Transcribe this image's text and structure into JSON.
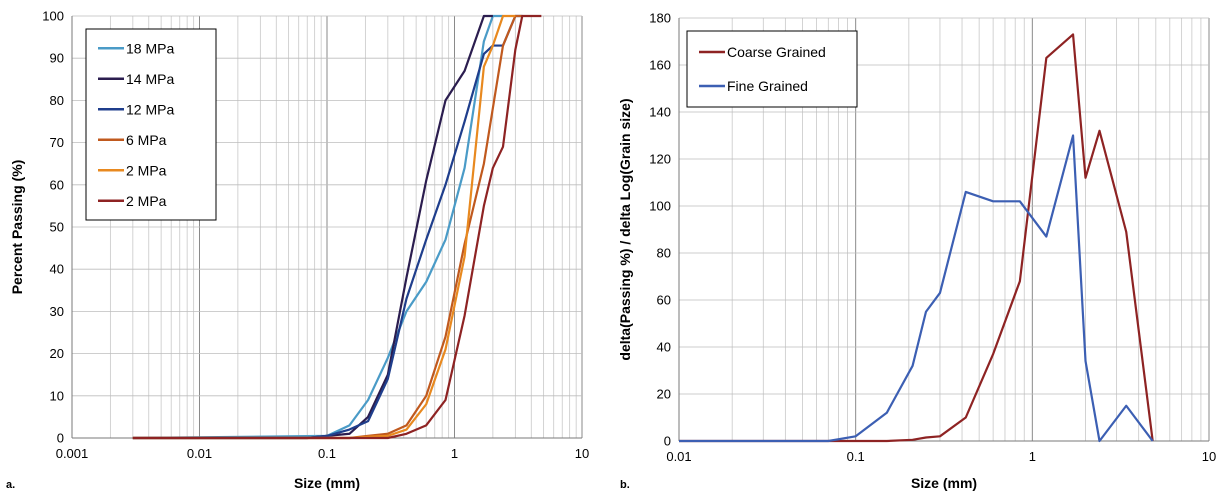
{
  "chart_data": [
    {
      "panel_label": "a.",
      "type": "line",
      "xlabel": "Size (mm)",
      "ylabel": "Percent Passing (%)",
      "xscale": "log",
      "xlim": [
        0.001,
        10
      ],
      "ylim": [
        0,
        100
      ],
      "x_ticks": [
        "0.001",
        "0.01",
        "0.1",
        "1",
        "10"
      ],
      "y_ticks": [
        "0",
        "10",
        "20",
        "30",
        "40",
        "50",
        "60",
        "70",
        "80",
        "90",
        "100"
      ],
      "grid": true,
      "legend_position": "top-left",
      "series": [
        {
          "name": "18 MPa",
          "color": "#4a9bc7",
          "points": [
            [
              0.003,
              0
            ],
            [
              0.1,
              0.5
            ],
            [
              0.15,
              3
            ],
            [
              0.21,
              9
            ],
            [
              0.3,
              19
            ],
            [
              0.42,
              30
            ],
            [
              0.6,
              37
            ],
            [
              0.85,
              47
            ],
            [
              1.2,
              64
            ],
            [
              1.7,
              94
            ],
            [
              2.0,
              100
            ],
            [
              2.4,
              100
            ]
          ]
        },
        {
          "name": "14 MPa",
          "color": "#2b1d4f",
          "points": [
            [
              0.003,
              0
            ],
            [
              0.07,
              0
            ],
            [
              0.1,
              0.5
            ],
            [
              0.15,
              1
            ],
            [
              0.21,
              5
            ],
            [
              0.3,
              15
            ],
            [
              0.42,
              38
            ],
            [
              0.6,
              61
            ],
            [
              0.85,
              80
            ],
            [
              1.2,
              87
            ],
            [
              1.7,
              100
            ],
            [
              2.0,
              100
            ]
          ]
        },
        {
          "name": "12 MPa",
          "color": "#1f3e8c",
          "points": [
            [
              0.003,
              0
            ],
            [
              0.07,
              0
            ],
            [
              0.1,
              0.5
            ],
            [
              0.15,
              2
            ],
            [
              0.21,
              4
            ],
            [
              0.3,
              14
            ],
            [
              0.42,
              33
            ],
            [
              0.6,
              47
            ],
            [
              0.85,
              60
            ],
            [
              1.2,
              75
            ],
            [
              1.7,
              91
            ],
            [
              2.0,
              93
            ],
            [
              2.4,
              93
            ],
            [
              3.0,
              100
            ],
            [
              3.4,
              100
            ]
          ]
        },
        {
          "name": "6 MPa",
          "color": "#c0591e",
          "points": [
            [
              0.003,
              0
            ],
            [
              0.15,
              0
            ],
            [
              0.21,
              0.5
            ],
            [
              0.3,
              1
            ],
            [
              0.42,
              3
            ],
            [
              0.6,
              10
            ],
            [
              0.85,
              24
            ],
            [
              1.2,
              46
            ],
            [
              1.7,
              65
            ],
            [
              2.4,
              93
            ],
            [
              3.0,
              100
            ],
            [
              3.4,
              100
            ]
          ]
        },
        {
          "name": "2 MPa",
          "color": "#e8891f",
          "points": [
            [
              0.003,
              0
            ],
            [
              0.15,
              0
            ],
            [
              0.21,
              0.3
            ],
            [
              0.3,
              0.5
            ],
            [
              0.42,
              2
            ],
            [
              0.6,
              8
            ],
            [
              0.85,
              21
            ],
            [
              1.2,
              43
            ],
            [
              1.7,
              88
            ],
            [
              2.0,
              93
            ],
            [
              2.4,
              100
            ],
            [
              3.0,
              100
            ]
          ]
        },
        {
          "name": "2 MPa",
          "color": "#8e2323",
          "points": [
            [
              0.003,
              0
            ],
            [
              0.3,
              0
            ],
            [
              0.42,
              1
            ],
            [
              0.6,
              3
            ],
            [
              0.85,
              9
            ],
            [
              1.2,
              29
            ],
            [
              1.7,
              55
            ],
            [
              2.0,
              64
            ],
            [
              2.4,
              69
            ],
            [
              3.0,
              92
            ],
            [
              3.4,
              100
            ],
            [
              4.8,
              100
            ]
          ]
        }
      ]
    },
    {
      "panel_label": "b.",
      "type": "line",
      "xlabel": "Size (mm)",
      "ylabel": "delta(Passing %) / delta Log(Grain size)",
      "xscale": "log",
      "xlim": [
        0.01,
        10
      ],
      "ylim": [
        0,
        180
      ],
      "x_ticks": [
        "0.01",
        "0.1",
        "1",
        "10"
      ],
      "y_ticks": [
        "0",
        "20",
        "40",
        "60",
        "80",
        "100",
        "120",
        "140",
        "160",
        "180"
      ],
      "grid": true,
      "legend_position": "top-left",
      "series": [
        {
          "name": "Coarse Grained",
          "color": "#8e2323",
          "points": [
            [
              0.01,
              0
            ],
            [
              0.07,
              0
            ],
            [
              0.1,
              0
            ],
            [
              0.15,
              0
            ],
            [
              0.21,
              0.5
            ],
            [
              0.25,
              1.5
            ],
            [
              0.3,
              2
            ],
            [
              0.42,
              10
            ],
            [
              0.6,
              37
            ],
            [
              0.85,
              68
            ],
            [
              1.2,
              163
            ],
            [
              1.7,
              173
            ],
            [
              2.0,
              112
            ],
            [
              2.4,
              132
            ],
            [
              3.4,
              89
            ],
            [
              4.8,
              0
            ]
          ]
        },
        {
          "name": "Fine Grained",
          "color": "#3c5fb3",
          "points": [
            [
              0.01,
              0
            ],
            [
              0.07,
              0
            ],
            [
              0.1,
              2
            ],
            [
              0.15,
              12
            ],
            [
              0.21,
              32
            ],
            [
              0.25,
              55
            ],
            [
              0.3,
              63
            ],
            [
              0.42,
              106
            ],
            [
              0.6,
              102
            ],
            [
              0.85,
              102
            ],
            [
              1.2,
              87
            ],
            [
              1.7,
              130
            ],
            [
              2.0,
              34
            ],
            [
              2.4,
              0
            ],
            [
              3.4,
              15
            ],
            [
              4.8,
              0
            ]
          ]
        }
      ]
    }
  ]
}
